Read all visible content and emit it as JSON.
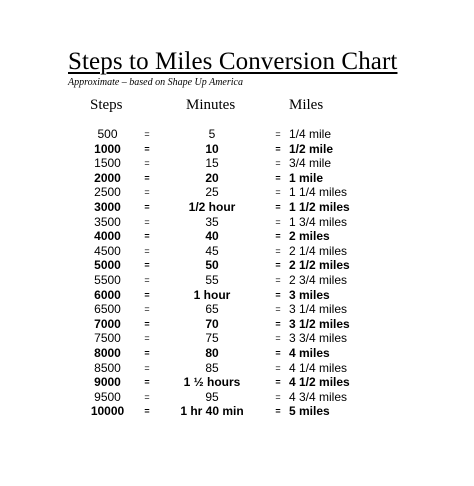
{
  "header": {
    "title": "Steps to Miles Conversion Chart",
    "subtitle": "Approximate – based on Shape Up America"
  },
  "columns": {
    "steps": "Steps",
    "minutes": "Minutes",
    "miles": "Miles"
  },
  "rows": [
    {
      "steps": "500",
      "eq1": "=",
      "minutes": "5",
      "eq2": "=",
      "miles": "1/4 mile",
      "bold": false
    },
    {
      "steps": "1000",
      "eq1": "=",
      "minutes": "10",
      "eq2": "=",
      "miles": "1/2 mile",
      "bold": true
    },
    {
      "steps": "1500",
      "eq1": "=",
      "minutes": "15",
      "eq2": "=",
      "miles": "3/4 mile",
      "bold": false
    },
    {
      "steps": "2000",
      "eq1": "=",
      "minutes": "20",
      "eq2": "=",
      "miles": "1 mile",
      "bold": true
    },
    {
      "steps": "2500",
      "eq1": "=",
      "minutes": "25",
      "eq2": "=",
      "miles": "1 1/4 miles",
      "bold": false
    },
    {
      "steps": "3000",
      "eq1": "=",
      "minutes": "1/2 hour",
      "eq2": "=",
      "miles": "1 1/2 miles",
      "bold": true
    },
    {
      "steps": "3500",
      "eq1": "=",
      "minutes": "35",
      "eq2": "=",
      "miles": "1 3/4 miles",
      "bold": false
    },
    {
      "steps": "4000",
      "eq1": "=",
      "minutes": "40",
      "eq2": "=",
      "miles": "2 miles",
      "bold": true
    },
    {
      "steps": "4500",
      "eq1": "=",
      "minutes": "45",
      "eq2": "=",
      "miles": "2 1/4 miles",
      "bold": false
    },
    {
      "steps": "5000",
      "eq1": "=",
      "minutes": "50",
      "eq2": "=",
      "miles": "2 1/2 miles",
      "bold": true
    },
    {
      "steps": "5500",
      "eq1": "=",
      "minutes": "55",
      "eq2": "=",
      "miles": "2 3/4 miles",
      "bold": false
    },
    {
      "steps": "6000",
      "eq1": "=",
      "minutes": "1 hour",
      "eq2": "=",
      "miles": "3 miles",
      "bold": true
    },
    {
      "steps": "6500",
      "eq1": "=",
      "minutes": "65",
      "eq2": "=",
      "miles": "3 1/4 miles",
      "bold": false
    },
    {
      "steps": "7000",
      "eq1": "=",
      "minutes": "70",
      "eq2": "=",
      "miles": "3 1/2 miles",
      "bold": true
    },
    {
      "steps": "7500",
      "eq1": "=",
      "minutes": "75",
      "eq2": "=",
      "miles": "3 3/4 miles",
      "bold": false
    },
    {
      "steps": "8000",
      "eq1": "=",
      "minutes": "80",
      "eq2": "=",
      "miles": "4 miles",
      "bold": true
    },
    {
      "steps": "8500",
      "eq1": "=",
      "minutes": "85",
      "eq2": "=",
      "miles": "4 1/4 miles",
      "bold": false
    },
    {
      "steps": "9000",
      "eq1": "=",
      "minutes": "1 ½ hours",
      "eq2": "=",
      "miles": "4 1/2 miles",
      "bold": true
    },
    {
      "steps": "9500",
      "eq1": "=",
      "minutes": "95",
      "eq2": "=",
      "miles": "4 3/4 miles",
      "bold": false
    },
    {
      "steps": "10000",
      "eq1": "=",
      "minutes": "1 hr 40 min",
      "eq2": "=",
      "miles": "5 miles",
      "bold": true
    }
  ]
}
